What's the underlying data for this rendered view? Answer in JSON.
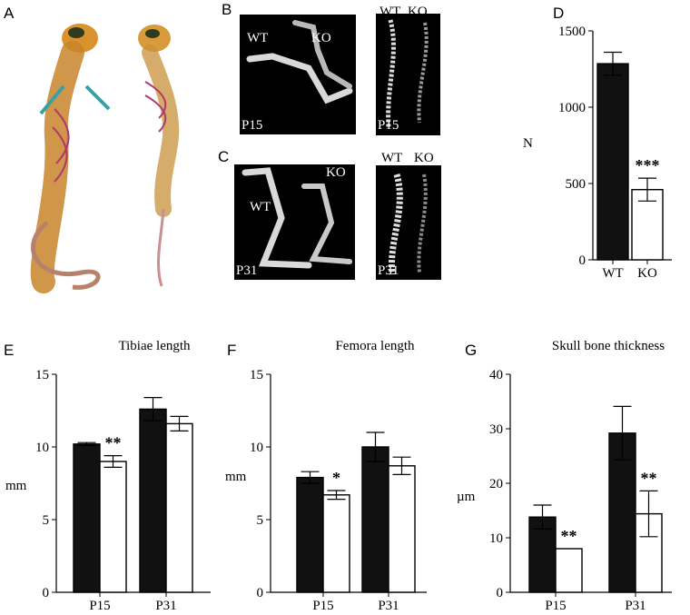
{
  "panel_labels": {
    "A": "A",
    "B": "B",
    "C": "C",
    "D": "D",
    "E": "E",
    "F": "F",
    "G": "G"
  },
  "image_labels": {
    "b_bones_wt": "WT",
    "b_bones_ko": "KO",
    "b_bones_age": "P15",
    "b_spine_wt": "WT",
    "b_spine_ko": "KO",
    "b_spine_age": "P15",
    "c_bones_wt": "WT",
    "c_bones_ko": "KO",
    "c_bones_age": "P31",
    "c_spine_wt": "WT",
    "c_spine_ko": "KO",
    "c_spine_age": "P31"
  },
  "colors": {
    "wt_bar": "#111111",
    "ko_bar": "#ffffff",
    "stroke": "#000000",
    "mouse_skin": "#c8842a",
    "mouse_cartilage": "#3aa0a0",
    "mouse_bone": "#b03a6a"
  },
  "chart_data": [
    {
      "id": "D",
      "type": "bar",
      "title": "",
      "xlabel": "",
      "ylabel": "N",
      "ylim": [
        0,
        1500
      ],
      "yticks": [
        0,
        500,
        1000,
        1500
      ],
      "categories": [
        "WT",
        "KO"
      ],
      "series": [
        {
          "values": [
            1285,
            460
          ],
          "errors": [
            75,
            75
          ]
        }
      ],
      "annotations": [
        {
          "text": "***",
          "category": "KO"
        }
      ]
    },
    {
      "id": "E",
      "type": "bar",
      "title": "Tibiae length",
      "xlabel": "",
      "ylabel": "mm",
      "ylim": [
        0,
        15
      ],
      "yticks": [
        0,
        5,
        10,
        15
      ],
      "categories": [
        "P15",
        "P31"
      ],
      "series": [
        {
          "values": [
            10.2,
            12.6
          ],
          "errors": [
            0.1,
            0.8
          ]
        },
        {
          "values": [
            9.0,
            11.6
          ],
          "errors": [
            0.4,
            0.5
          ]
        }
      ],
      "annotations": [
        {
          "text": "**",
          "category": "P15",
          "series": 1
        }
      ]
    },
    {
      "id": "F",
      "type": "bar",
      "title": "Femora length",
      "xlabel": "",
      "ylabel": "mm",
      "ylim": [
        0,
        15
      ],
      "yticks": [
        0,
        5,
        10,
        15
      ],
      "categories": [
        "P15",
        "P31"
      ],
      "series": [
        {
          "values": [
            7.9,
            10.0
          ],
          "errors": [
            0.4,
            1.0
          ]
        },
        {
          "values": [
            6.7,
            8.7
          ],
          "errors": [
            0.3,
            0.6
          ]
        }
      ],
      "annotations": [
        {
          "text": "*",
          "category": "P15",
          "series": 1
        }
      ]
    },
    {
      "id": "G",
      "type": "bar",
      "title": "Skull bone thickness",
      "xlabel": "",
      "ylabel": "µm",
      "ylim": [
        0,
        40
      ],
      "yticks": [
        0,
        10,
        20,
        30,
        40
      ],
      "categories": [
        "P15",
        "P31"
      ],
      "series": [
        {
          "values": [
            13.8,
            29.2
          ],
          "errors": [
            2.2,
            4.9
          ]
        },
        {
          "values": [
            8.0,
            14.4
          ],
          "errors": [
            0,
            4.2
          ]
        }
      ],
      "annotations": [
        {
          "text": "**",
          "category": "P15",
          "series": 1
        },
        {
          "text": "**",
          "category": "P31",
          "series": 1
        }
      ]
    }
  ]
}
